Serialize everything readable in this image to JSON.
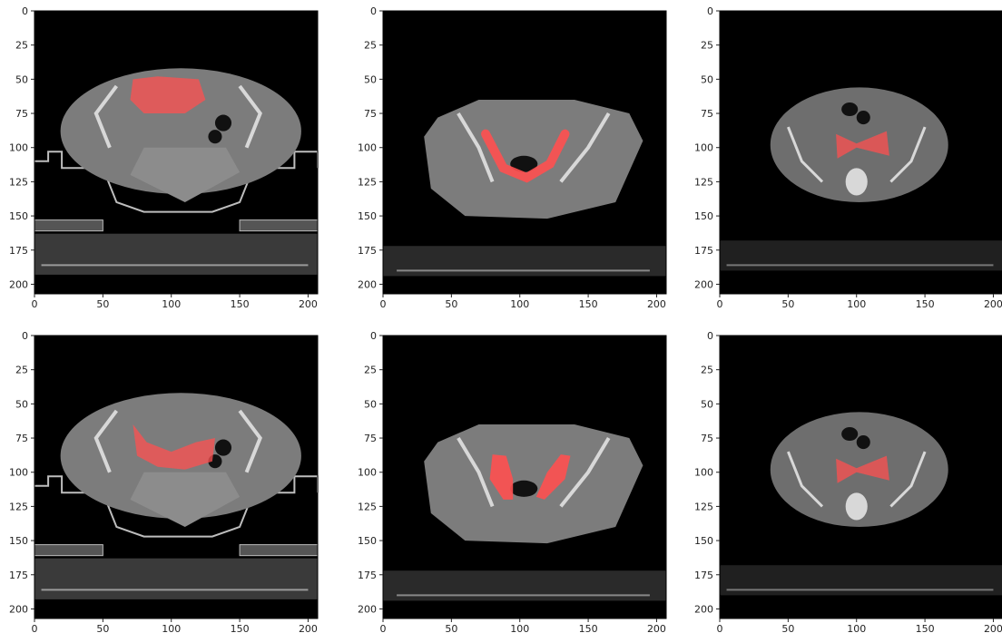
{
  "figure": {
    "x_ticks": [
      "0",
      "50",
      "100",
      "150",
      "200"
    ],
    "y_ticks": [
      "0",
      "25",
      "50",
      "75",
      "100",
      "125",
      "150",
      "175",
      "200"
    ],
    "axis_range": [
      0,
      207
    ],
    "overlay_color": "#ff5050",
    "colors": {
      "background": "#000000",
      "table": "#3a3a3a",
      "body": "#7c7c7c",
      "bone": "#d8d8d8",
      "air": "#111111"
    },
    "panels": [
      {
        "id": "top-left",
        "variant": "table",
        "mask": "bladder-round"
      },
      {
        "id": "top-middle",
        "variant": "pelvis",
        "mask": "u-shape"
      },
      {
        "id": "top-right",
        "variant": "small",
        "mask": "bowtie"
      },
      {
        "id": "bottom-left",
        "variant": "table",
        "mask": "curved-band"
      },
      {
        "id": "bottom-middle",
        "variant": "pelvis",
        "mask": "split-lobes"
      },
      {
        "id": "bottom-right",
        "variant": "small",
        "mask": "bowtie"
      }
    ]
  }
}
